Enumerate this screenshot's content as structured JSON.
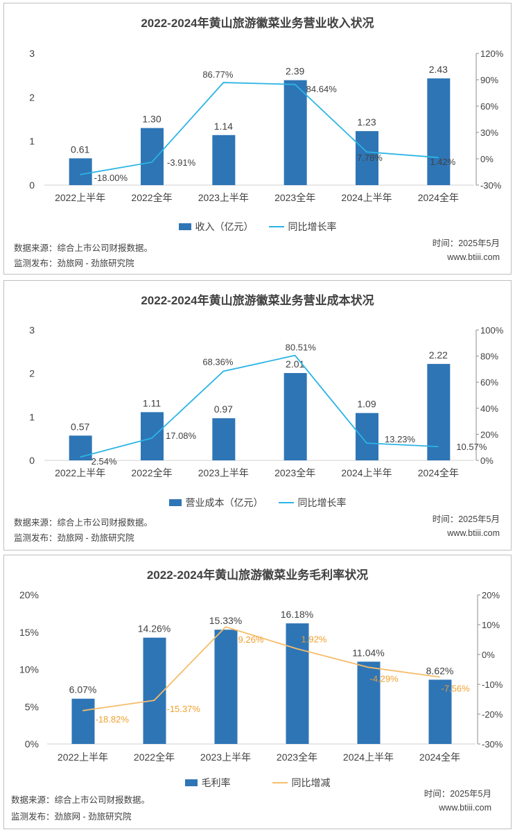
{
  "colors": {
    "bar": "#2e75b6",
    "line_revenue": "#2ab4e4",
    "line_cost": "#2ab4e4",
    "line_margin": "#f5bd6a",
    "axis": "#7f7f7f",
    "text": "#404040"
  },
  "chart_data": [
    {
      "type": "bar+line",
      "title": "2022-2024年黄山旅游徽菜业务营业收入状况",
      "categories": [
        "2022上半年",
        "2022全年",
        "2023上半年",
        "2023全年",
        "2024上半年",
        "2024全年"
      ],
      "series": [
        {
          "name": "收入（亿元）",
          "type": "bar",
          "axis": "left",
          "values": [
            0.61,
            1.3,
            1.14,
            2.39,
            1.23,
            2.43
          ],
          "labels": [
            "0.61",
            "1.30",
            "1.14",
            "2.39",
            "1.23",
            "2.43"
          ]
        },
        {
          "name": "同比增长率",
          "type": "line",
          "axis": "right",
          "values": [
            -18.0,
            -3.91,
            86.77,
            84.64,
            7.78,
            1.42
          ],
          "labels": [
            "-18.00%",
            "-3.91%",
            "86.77%",
            "84.64%",
            "7.78%",
            "1.42%"
          ]
        }
      ],
      "ylim": [
        0,
        3
      ],
      "yticks": [
        "0",
        "1",
        "2",
        "3"
      ],
      "y2lim": [
        -30,
        120
      ],
      "y2ticks": [
        "-30%",
        "0%",
        "30%",
        "60%",
        "90%",
        "120%"
      ],
      "legend": "bottom",
      "source": "数据来源：综合上市公司财报数据。",
      "publisher": "监测发布：劲旅网 - 劲旅研究院",
      "time": "时间：2025年5月",
      "site": "www.btiii.com"
    },
    {
      "type": "bar+line",
      "title": "2022-2024年黄山旅游徽菜业务营业成本状况",
      "categories": [
        "2022上半年",
        "2022全年",
        "2023上半年",
        "2023全年",
        "2024上半年",
        "2024全年"
      ],
      "series": [
        {
          "name": "营业成本（亿元）",
          "type": "bar",
          "axis": "left",
          "values": [
            0.57,
            1.11,
            0.97,
            2.01,
            1.09,
            2.22
          ],
          "labels": [
            "0.57",
            "1.11",
            "0.97",
            "2.01",
            "1.09",
            "2.22"
          ]
        },
        {
          "name": "同比增长率",
          "type": "line",
          "axis": "right",
          "values": [
            2.54,
            17.08,
            68.36,
            80.51,
            13.23,
            10.57
          ],
          "labels": [
            "2.54%",
            "17.08%",
            "68.36%",
            "80.51%",
            "13.23%",
            "10.57%"
          ]
        }
      ],
      "ylim": [
        0,
        3
      ],
      "yticks": [
        "0",
        "1",
        "2",
        "3"
      ],
      "y2lim": [
        0,
        100
      ],
      "y2ticks": [
        "0%",
        "20%",
        "40%",
        "60%",
        "80%",
        "100%"
      ],
      "legend": "bottom",
      "source": "数据来源：综合上市公司财报数据。",
      "publisher": "监测发布：劲旅网 - 劲旅研究院",
      "time": "时间：2025年5月",
      "site": "www.btiii.com"
    },
    {
      "type": "bar+line",
      "title": "2022-2024年黄山旅游徽菜业务毛利率状况",
      "categories": [
        "2022上半年",
        "2022全年",
        "2023上半年",
        "2023全年",
        "2024上半年",
        "2024全年"
      ],
      "series": [
        {
          "name": "毛利率",
          "type": "bar",
          "axis": "left",
          "values": [
            6.07,
            14.26,
            15.33,
            16.18,
            11.04,
            8.62
          ],
          "labels": [
            "6.07%",
            "14.26%",
            "15.33%",
            "16.18%",
            "11.04%",
            "8.62%"
          ]
        },
        {
          "name": "同比增减",
          "type": "line",
          "axis": "right",
          "values": [
            -18.82,
            -15.37,
            9.26,
            1.92,
            -4.29,
            -7.56
          ],
          "labels": [
            "-18.82%",
            "-15.37%",
            "9.26%",
            "1.92%",
            "-4.29%",
            "-7.56%"
          ]
        }
      ],
      "ylim": [
        0,
        20
      ],
      "yticks": [
        "0%",
        "5%",
        "10%",
        "15%",
        "20%"
      ],
      "y2lim": [
        -30,
        20
      ],
      "y2ticks": [
        "-30%",
        "-20%",
        "-10%",
        "0%",
        "10%",
        "20%"
      ],
      "legend": "bottom",
      "source": "数据来源：综合上市公司财报数据。",
      "publisher": "监测发布：劲旅网 - 劲旅研究院",
      "time": "时间：2025年5月",
      "site": "www.btiii.com"
    }
  ]
}
